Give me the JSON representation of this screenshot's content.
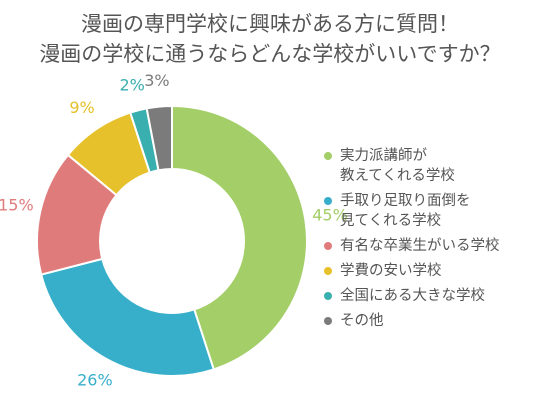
{
  "chart_data": {
    "type": "pie",
    "title": "漫画の専門学校に興味がある方に質問！",
    "subtitle": "漫画の学校に通うならどんな学校がいいですか？",
    "legend_position": "right",
    "hole": true,
    "categories": [
      "実力派講師が\n教えてくれる学校",
      "手取り足取り面倒を\n見てくれる学校",
      "有名な卒業生がいる学校",
      "学費の安い学校",
      "全国にある大きな学校",
      "その他"
    ],
    "values": [
      45,
      26,
      15,
      9,
      2,
      3
    ],
    "value_labels": [
      "45%",
      "26%",
      "15%",
      "9%",
      "2%",
      "3%"
    ],
    "colors": [
      "#a3ce68",
      "#37afcb",
      "#e07b7b",
      "#e6c12b",
      "#3aafaf",
      "#7b7b7b"
    ]
  }
}
